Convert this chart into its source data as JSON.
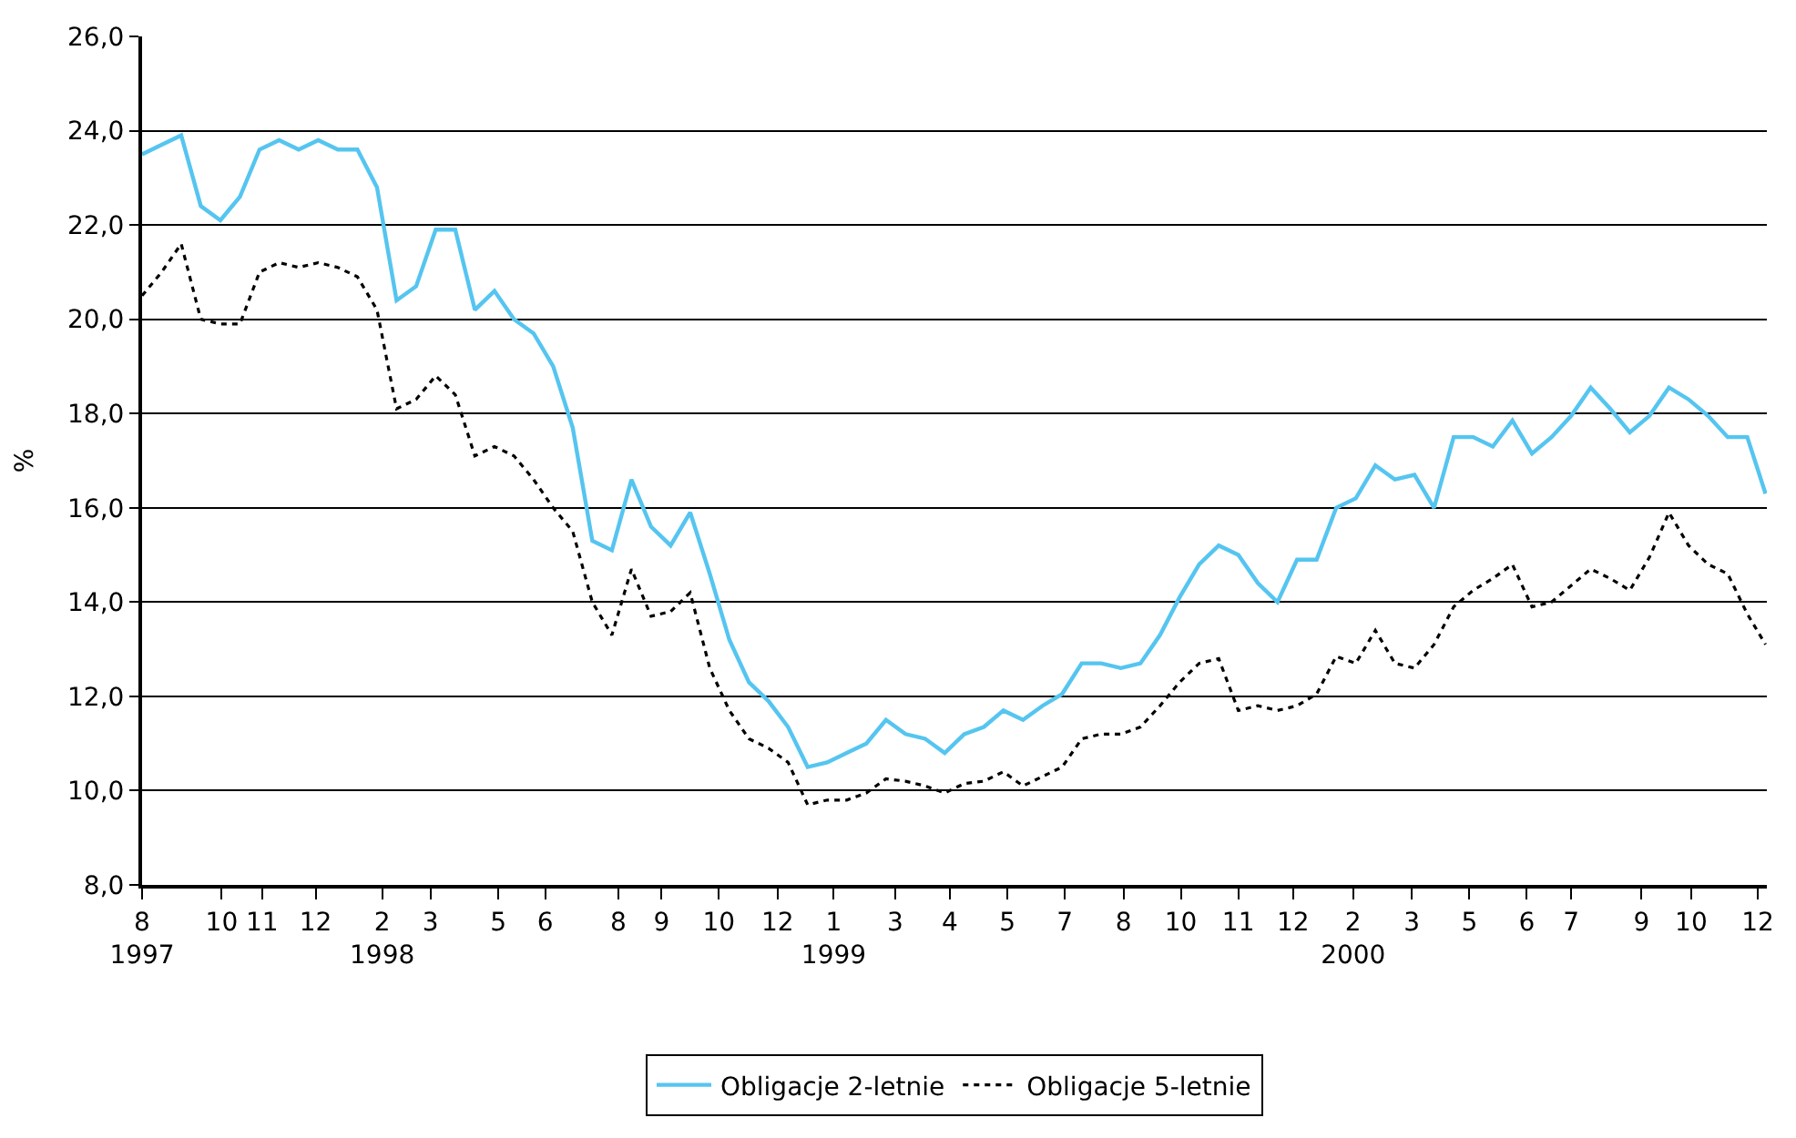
{
  "chart_data": {
    "type": "line",
    "ylabel": "%",
    "grid": "y",
    "legend": "bottom",
    "x": [
      "1997-08-01",
      "1997-08-16",
      "1997-08-31",
      "1997-09-15",
      "1997-09-30",
      "1997-10-15",
      "1997-10-30",
      "1997-11-14",
      "1997-11-29",
      "1997-12-14",
      "1997-12-29",
      "1998-01-13",
      "1998-01-28",
      "1998-02-12",
      "1998-02-27",
      "1998-03-14",
      "1998-03-29",
      "1998-04-13",
      "1998-04-28",
      "1998-05-13",
      "1998-05-28",
      "1998-06-12",
      "1998-06-27",
      "1998-07-12",
      "1998-07-27",
      "1998-08-11",
      "1998-08-26",
      "1998-09-10",
      "1998-09-25",
      "1998-10-10",
      "1998-10-25",
      "1998-11-09",
      "1998-11-24",
      "1998-12-09",
      "1998-12-24",
      "1999-01-08",
      "1999-01-23",
      "1999-02-07",
      "1999-02-22",
      "1999-03-09",
      "1999-03-24",
      "1999-04-08",
      "1999-04-23",
      "1999-05-08",
      "1999-05-23",
      "1999-06-07",
      "1999-06-22",
      "1999-07-07",
      "1999-07-22",
      "1999-08-06",
      "1999-08-21",
      "1999-09-05",
      "1999-09-20",
      "1999-10-05",
      "1999-10-20",
      "1999-11-04",
      "1999-11-19",
      "1999-12-04",
      "1999-12-19",
      "2000-01-03",
      "2000-01-18",
      "2000-02-02",
      "2000-02-17",
      "2000-03-03",
      "2000-03-18",
      "2000-04-02",
      "2000-04-17",
      "2000-05-02",
      "2000-05-17",
      "2000-06-01",
      "2000-06-16",
      "2000-07-01",
      "2000-07-16",
      "2000-07-31",
      "2000-08-15",
      "2000-08-30",
      "2000-09-14",
      "2000-09-29",
      "2000-10-14",
      "2000-10-29",
      "2000-11-13",
      "2000-11-28",
      "2000-12-13",
      "2000-12-27"
    ],
    "series": [
      {
        "name": "Obligacje 2-letnie",
        "color": "#55c5f0",
        "line_style": "solid",
        "values": [
          23.5,
          23.7,
          23.9,
          22.4,
          22.1,
          22.6,
          23.6,
          23.8,
          23.6,
          23.8,
          23.6,
          23.6,
          22.8,
          20.4,
          20.7,
          21.9,
          21.9,
          20.2,
          20.6,
          20.0,
          19.7,
          19.0,
          17.7,
          15.3,
          15.1,
          16.6,
          15.6,
          15.2,
          15.9,
          14.6,
          13.2,
          12.3,
          11.9,
          11.35,
          10.5,
          10.6,
          10.8,
          11.0,
          11.5,
          11.2,
          11.1,
          10.8,
          11.2,
          11.35,
          11.7,
          11.5,
          11.8,
          12.05,
          12.7,
          12.7,
          12.6,
          12.7,
          13.3,
          14.1,
          14.8,
          15.2,
          15.0,
          14.4,
          14.0,
          14.9,
          14.9,
          16.0,
          16.2,
          16.9,
          16.6,
          16.7,
          16.0,
          17.5,
          17.5,
          17.3,
          17.85,
          17.15,
          17.5,
          17.95,
          18.55,
          18.1,
          17.6,
          17.95,
          18.55,
          18.3,
          17.95,
          17.5,
          17.5,
          16.3
        ]
      },
      {
        "name": "Obligacje 5-letnie",
        "color": "#000000",
        "line_style": "dotted",
        "values": [
          20.5,
          21.0,
          21.6,
          20.0,
          19.9,
          19.9,
          21.0,
          21.2,
          21.1,
          21.2,
          21.1,
          20.9,
          20.2,
          18.1,
          18.3,
          18.8,
          18.4,
          17.1,
          17.3,
          17.1,
          16.6,
          16.0,
          15.5,
          14.0,
          13.3,
          14.7,
          13.7,
          13.8,
          14.2,
          12.6,
          11.7,
          11.1,
          10.9,
          10.6,
          9.7,
          9.8,
          9.8,
          9.95,
          10.25,
          10.2,
          10.1,
          9.95,
          10.15,
          10.2,
          10.4,
          10.1,
          10.3,
          10.5,
          11.1,
          11.2,
          11.2,
          11.35,
          11.8,
          12.3,
          12.7,
          12.8,
          11.7,
          11.8,
          11.7,
          11.8,
          12.05,
          12.85,
          12.7,
          13.4,
          12.7,
          12.6,
          13.1,
          13.9,
          14.25,
          14.5,
          14.8,
          13.9,
          14.0,
          14.35,
          14.7,
          14.5,
          14.25,
          14.95,
          15.9,
          15.2,
          14.8,
          14.6,
          13.75,
          13.1
        ]
      }
    ],
    "xlim": [
      "1997-08-01",
      "2000-12-28"
    ],
    "xticks": [
      {
        "value": "1997-08-01",
        "label": "8\n1997"
      },
      {
        "value": "1997-10-01",
        "label": "10"
      },
      {
        "value": "1997-11-01",
        "label": "11"
      },
      {
        "value": "1997-12-12",
        "label": "12"
      },
      {
        "value": "1998-02-01",
        "label": "2\n1998"
      },
      {
        "value": "1998-03-10",
        "label": "3"
      },
      {
        "value": "1998-05-01",
        "label": "5"
      },
      {
        "value": "1998-06-06",
        "label": "6"
      },
      {
        "value": "1998-08-01",
        "label": "8"
      },
      {
        "value": "1998-09-03",
        "label": "9"
      },
      {
        "value": "1998-10-17",
        "label": "10"
      },
      {
        "value": "1998-12-01",
        "label": "12"
      },
      {
        "value": "1999-01-13",
        "label": "1\n1999"
      },
      {
        "value": "1999-03-01",
        "label": "3"
      },
      {
        "value": "1999-04-12",
        "label": "4"
      },
      {
        "value": "1999-05-26",
        "label": "5"
      },
      {
        "value": "1999-07-09",
        "label": "7"
      },
      {
        "value": "1999-08-23",
        "label": "8"
      },
      {
        "value": "1999-10-06",
        "label": "10"
      },
      {
        "value": "1999-11-19",
        "label": "11"
      },
      {
        "value": "1999-12-31",
        "label": "12"
      },
      {
        "value": "2000-02-15",
        "label": "2\n2000"
      },
      {
        "value": "2000-03-31",
        "label": "3"
      },
      {
        "value": "2000-05-14",
        "label": "5"
      },
      {
        "value": "2000-06-27",
        "label": "6"
      },
      {
        "value": "2000-07-31",
        "label": "7"
      },
      {
        "value": "2000-09-23",
        "label": "9"
      },
      {
        "value": "2000-10-31",
        "label": "10"
      },
      {
        "value": "2000-12-21",
        "label": "12"
      }
    ],
    "ylim": [
      8,
      26
    ],
    "yticks": [
      {
        "value": 8,
        "label": "8,0"
      },
      {
        "value": 10,
        "label": "10,0"
      },
      {
        "value": 12,
        "label": "12,0"
      },
      {
        "value": 14,
        "label": "14,0"
      },
      {
        "value": 16,
        "label": "16,0"
      },
      {
        "value": 18,
        "label": "18,0"
      },
      {
        "value": 20,
        "label": "20,0"
      },
      {
        "value": 22,
        "label": "22,0"
      },
      {
        "value": 24,
        "label": "24,0"
      },
      {
        "value": 26,
        "label": "26,0"
      }
    ]
  }
}
